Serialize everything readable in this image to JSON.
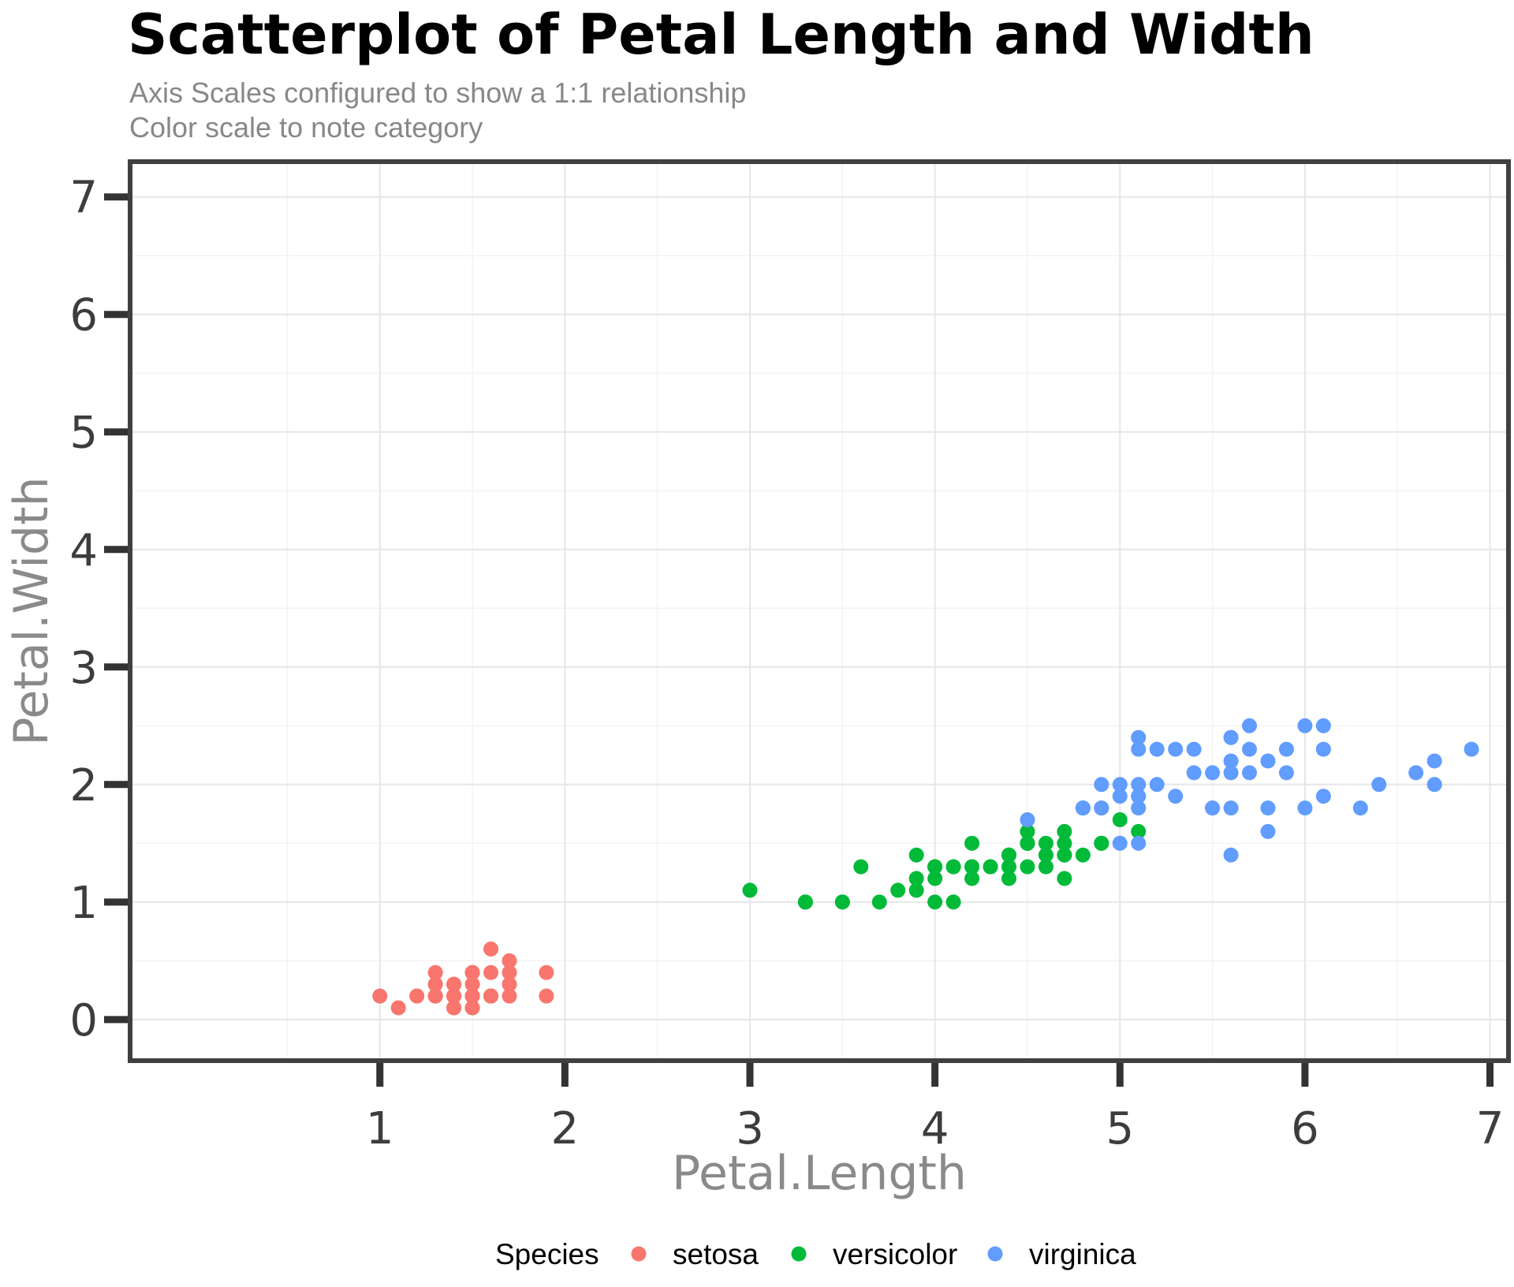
{
  "chart_data": {
    "type": "scatter",
    "title": "Scatterplot of Petal Length and Width",
    "subtitle": [
      "Axis Scales configured to show a 1:1 relationship",
      "Color scale to note category"
    ],
    "xlabel": "Petal.Length",
    "ylabel": "Petal.Width",
    "xlim": [
      -0.35,
      7.1
    ],
    "ylim": [
      -0.35,
      7.3
    ],
    "x_ticks": [
      1,
      2,
      3,
      4,
      5,
      6,
      7
    ],
    "y_ticks": [
      0,
      1,
      2,
      3,
      4,
      5,
      6,
      7
    ],
    "grid": true,
    "legend": {
      "title": "Species",
      "position": "bottom"
    },
    "series": [
      {
        "name": "setosa",
        "color": "#F8766D",
        "x": [
          1.4,
          1.4,
          1.3,
          1.5,
          1.4,
          1.7,
          1.4,
          1.5,
          1.4,
          1.5,
          1.5,
          1.6,
          1.4,
          1.1,
          1.2,
          1.5,
          1.3,
          1.4,
          1.7,
          1.5,
          1.7,
          1.5,
          1.0,
          1.7,
          1.9,
          1.6,
          1.6,
          1.5,
          1.4,
          1.6,
          1.6,
          1.5,
          1.5,
          1.4,
          1.5,
          1.2,
          1.3,
          1.4,
          1.3,
          1.5,
          1.3,
          1.3,
          1.3,
          1.6,
          1.9,
          1.4,
          1.6,
          1.4,
          1.5,
          1.4
        ],
        "y": [
          0.2,
          0.2,
          0.2,
          0.2,
          0.2,
          0.4,
          0.3,
          0.2,
          0.2,
          0.1,
          0.2,
          0.2,
          0.1,
          0.1,
          0.2,
          0.4,
          0.4,
          0.3,
          0.3,
          0.3,
          0.2,
          0.4,
          0.2,
          0.5,
          0.2,
          0.2,
          0.4,
          0.2,
          0.2,
          0.2,
          0.2,
          0.4,
          0.1,
          0.2,
          0.2,
          0.2,
          0.2,
          0.1,
          0.2,
          0.2,
          0.3,
          0.3,
          0.2,
          0.6,
          0.4,
          0.3,
          0.2,
          0.2,
          0.2,
          0.2
        ]
      },
      {
        "name": "versicolor",
        "color": "#00BA38",
        "x": [
          4.7,
          4.5,
          4.9,
          4.0,
          4.6,
          4.5,
          4.7,
          3.3,
          4.6,
          3.9,
          3.5,
          4.2,
          4.0,
          4.7,
          3.6,
          4.4,
          4.5,
          4.1,
          4.5,
          3.9,
          4.8,
          4.0,
          4.9,
          4.7,
          4.3,
          4.4,
          4.8,
          5.0,
          4.5,
          3.5,
          3.8,
          3.7,
          3.9,
          5.1,
          4.5,
          4.5,
          4.7,
          4.4,
          4.1,
          4.0,
          4.4,
          4.6,
          4.0,
          3.3,
          4.2,
          4.2,
          4.2,
          4.3,
          3.0,
          4.1
        ],
        "y": [
          1.4,
          1.5,
          1.5,
          1.3,
          1.5,
          1.3,
          1.6,
          1.0,
          1.3,
          1.4,
          1.0,
          1.5,
          1.0,
          1.4,
          1.3,
          1.4,
          1.5,
          1.0,
          1.5,
          1.1,
          1.8,
          1.3,
          1.5,
          1.2,
          1.3,
          1.4,
          1.4,
          1.7,
          1.5,
          1.0,
          1.1,
          1.0,
          1.2,
          1.6,
          1.5,
          1.6,
          1.5,
          1.3,
          1.3,
          1.3,
          1.2,
          1.4,
          1.2,
          1.0,
          1.3,
          1.2,
          1.3,
          1.3,
          1.1,
          1.3
        ]
      },
      {
        "name": "virginica",
        "color": "#619CFF",
        "x": [
          6.0,
          5.1,
          5.9,
          5.6,
          5.8,
          6.6,
          4.5,
          6.3,
          5.8,
          6.1,
          5.1,
          5.3,
          5.5,
          5.0,
          5.1,
          5.3,
          5.5,
          6.7,
          6.9,
          5.0,
          5.7,
          4.9,
          6.7,
          4.9,
          5.7,
          6.0,
          4.8,
          4.9,
          5.6,
          5.8,
          6.1,
          6.4,
          5.6,
          5.1,
          5.6,
          6.1,
          5.6,
          5.5,
          4.8,
          5.4,
          5.6,
          5.1,
          5.1,
          5.9,
          5.7,
          5.2,
          5.0,
          5.2,
          5.4,
          5.1
        ],
        "y": [
          2.5,
          1.9,
          2.1,
          1.8,
          2.2,
          2.1,
          1.7,
          1.8,
          1.8,
          2.5,
          2.0,
          1.9,
          2.1,
          2.0,
          2.4,
          2.3,
          1.8,
          2.2,
          2.3,
          1.5,
          2.3,
          2.0,
          2.0,
          1.8,
          2.1,
          1.8,
          1.8,
          1.8,
          2.1,
          1.6,
          1.9,
          2.0,
          2.2,
          1.5,
          1.4,
          2.3,
          2.4,
          1.8,
          1.8,
          2.1,
          2.4,
          2.3,
          1.9,
          2.3,
          2.5,
          2.3,
          1.9,
          2.0,
          2.3,
          1.8
        ]
      }
    ]
  }
}
